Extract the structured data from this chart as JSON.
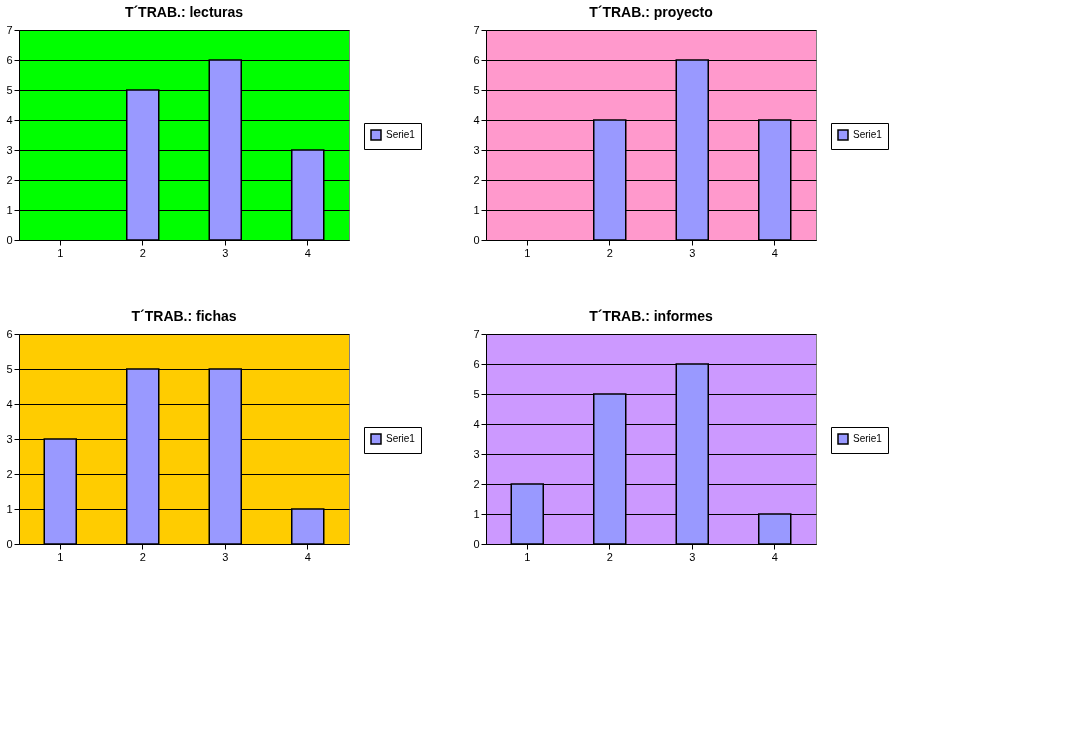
{
  "chart_data": [
    {
      "type": "bar",
      "title": "T´TRAB.: lecturas",
      "categories": [
        "1",
        "2",
        "3",
        "4"
      ],
      "series": [
        {
          "name": "Serie1",
          "color": "#9999ff",
          "values": [
            null,
            5,
            6,
            3
          ]
        }
      ],
      "ylim": [
        0,
        7
      ],
      "yticks": [
        0,
        1,
        2,
        3,
        4,
        5,
        6,
        7
      ],
      "grid": "y",
      "legend": "right"
    },
    {
      "type": "bar",
      "title": "T´TRAB.: proyecto",
      "categories": [
        "1",
        "2",
        "3",
        "4"
      ],
      "series": [
        {
          "name": "Serie1",
          "color": "#9999ff",
          "values": [
            null,
            4,
            6,
            4
          ]
        }
      ],
      "ylim": [
        0,
        7
      ],
      "yticks": [
        0,
        1,
        2,
        3,
        4,
        5,
        6,
        7
      ],
      "grid": "y",
      "legend": "right"
    },
    {
      "type": "bar",
      "title": "T´TRAB.: fichas",
      "categories": [
        "1",
        "2",
        "3",
        "4"
      ],
      "series": [
        {
          "name": "Serie1",
          "color": "#9999ff",
          "values": [
            3,
            5,
            5,
            1
          ]
        }
      ],
      "ylim": [
        0,
        6
      ],
      "yticks": [
        0,
        1,
        2,
        3,
        4,
        5,
        6
      ],
      "grid": "y",
      "legend": "right"
    },
    {
      "type": "bar",
      "title": "T´TRAB.: informes",
      "categories": [
        "1",
        "2",
        "3",
        "4"
      ],
      "series": [
        {
          "name": "Serie1",
          "color": "#9999ff",
          "values": [
            2,
            5,
            6,
            1
          ]
        }
      ],
      "ylim": [
        0,
        7
      ],
      "yticks": [
        0,
        1,
        2,
        3,
        4,
        5,
        6,
        7
      ],
      "grid": "y",
      "legend": "right"
    }
  ]
}
